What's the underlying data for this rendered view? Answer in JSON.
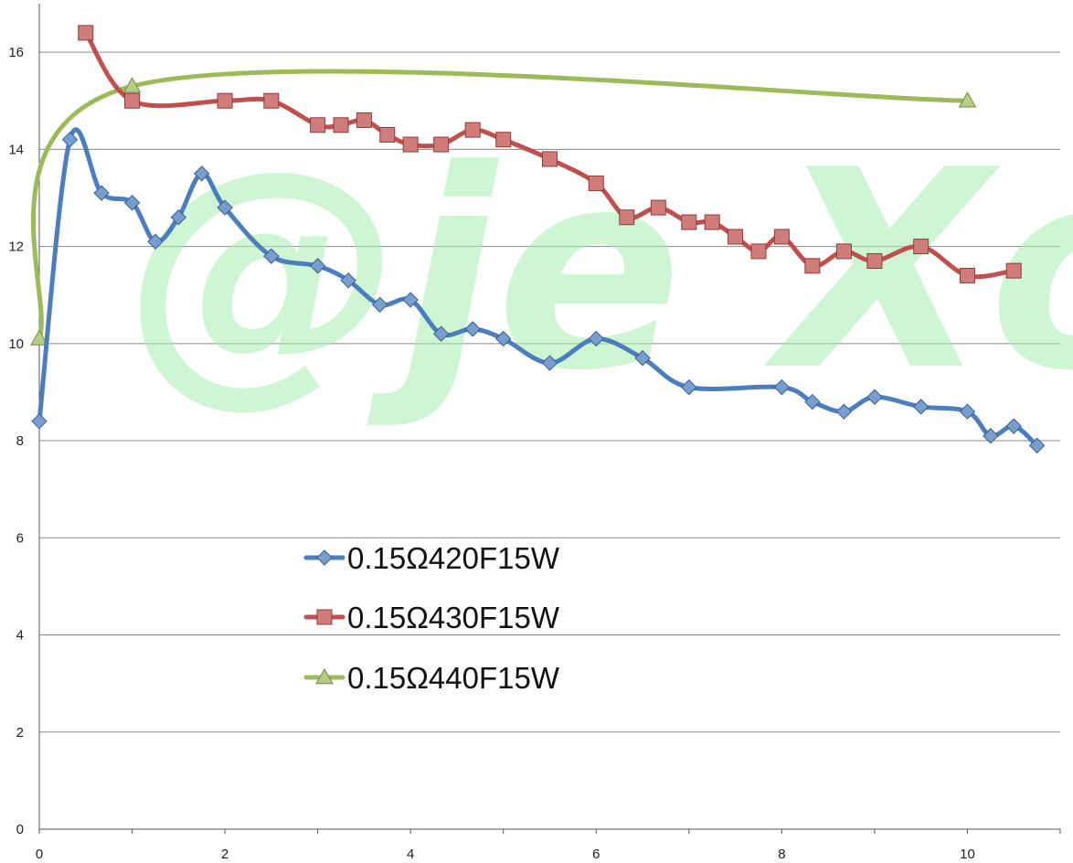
{
  "chart_data": {
    "type": "line",
    "xlim": [
      0,
      11
    ],
    "ylim": [
      0,
      17
    ],
    "x_ticks": [
      0,
      2,
      4,
      6,
      8,
      10
    ],
    "y_ticks": [
      0,
      2,
      4,
      6,
      8,
      10,
      12,
      14,
      16
    ],
    "grid": "horizontal",
    "smooth": true,
    "legend_position": "center",
    "watermark": "@je Xo",
    "series": [
      {
        "name": "0.15Ω420F15W",
        "color": "#4a7ebf",
        "marker": "diamond",
        "points": [
          [
            0,
            8.4
          ],
          [
            0.33,
            14.2
          ],
          [
            0.67,
            13.1
          ],
          [
            1.0,
            12.9
          ],
          [
            1.25,
            12.1
          ],
          [
            1.5,
            12.6
          ],
          [
            1.75,
            13.5
          ],
          [
            2.0,
            12.8
          ],
          [
            2.5,
            11.8
          ],
          [
            3.0,
            11.6
          ],
          [
            3.33,
            11.3
          ],
          [
            3.67,
            10.8
          ],
          [
            4.0,
            10.9
          ],
          [
            4.33,
            10.2
          ],
          [
            4.67,
            10.3
          ],
          [
            5.0,
            10.1
          ],
          [
            5.5,
            9.6
          ],
          [
            6.0,
            10.1
          ],
          [
            6.5,
            9.7
          ],
          [
            7.0,
            9.1
          ],
          [
            8.0,
            9.1
          ],
          [
            8.33,
            8.8
          ],
          [
            8.67,
            8.6
          ],
          [
            9.0,
            8.9
          ],
          [
            9.5,
            8.7
          ],
          [
            10.0,
            8.6
          ],
          [
            10.25,
            8.1
          ],
          [
            10.5,
            8.3
          ],
          [
            10.75,
            7.9
          ]
        ]
      },
      {
        "name": "0.15Ω430F15W",
        "color": "#c0504d",
        "marker": "square",
        "points": [
          [
            0.5,
            16.4
          ],
          [
            1.0,
            15.0
          ],
          [
            2.0,
            15.0
          ],
          [
            2.5,
            15.0
          ],
          [
            3.0,
            14.5
          ],
          [
            3.25,
            14.5
          ],
          [
            3.5,
            14.6
          ],
          [
            3.75,
            14.3
          ],
          [
            4.0,
            14.1
          ],
          [
            4.33,
            14.1
          ],
          [
            4.67,
            14.4
          ],
          [
            5.0,
            14.2
          ],
          [
            5.5,
            13.8
          ],
          [
            6.0,
            13.3
          ],
          [
            6.33,
            12.6
          ],
          [
            6.67,
            12.8
          ],
          [
            7.0,
            12.5
          ],
          [
            7.25,
            12.5
          ],
          [
            7.5,
            12.2
          ],
          [
            7.75,
            11.9
          ],
          [
            8.0,
            12.2
          ],
          [
            8.33,
            11.6
          ],
          [
            8.67,
            11.9
          ],
          [
            9.0,
            11.7
          ],
          [
            9.5,
            12.0
          ],
          [
            10.0,
            11.4
          ],
          [
            10.5,
            11.5
          ]
        ]
      },
      {
        "name": "0.15Ω440F15W",
        "color": "#9bbb59",
        "marker": "triangle",
        "points": [
          [
            0,
            10.1
          ],
          [
            1.0,
            15.3
          ],
          [
            10.0,
            15.0
          ]
        ]
      }
    ]
  }
}
